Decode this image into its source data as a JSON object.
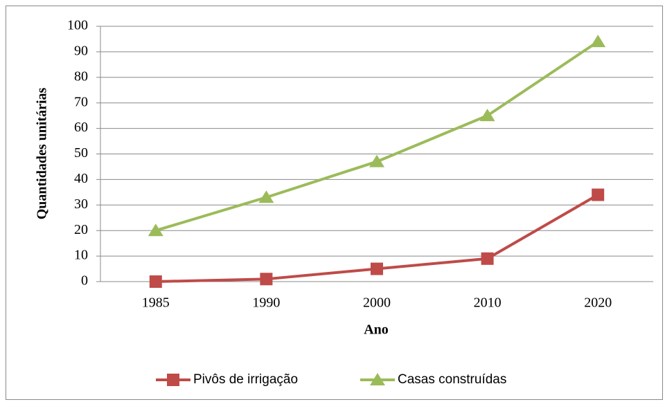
{
  "chart_data": {
    "type": "line",
    "x_label": "Ano",
    "y_label": "Quantidades unitárias",
    "categories": [
      "1985",
      "1990",
      "2000",
      "2010",
      "2020"
    ],
    "series": [
      {
        "name": "Pivôs de irrigação",
        "color": "#be4b48",
        "marker": "square",
        "values": [
          0,
          1,
          5,
          9,
          34
        ]
      },
      {
        "name": "Casas construídas",
        "color": "#9bbb59",
        "marker": "triangle",
        "values": [
          20,
          33,
          47,
          65,
          94
        ]
      }
    ],
    "ylim": [
      0,
      100
    ],
    "yticks": [
      0,
      10,
      20,
      30,
      40,
      50,
      60,
      70,
      80,
      90,
      100
    ],
    "grid": true,
    "legend": "bottom"
  }
}
